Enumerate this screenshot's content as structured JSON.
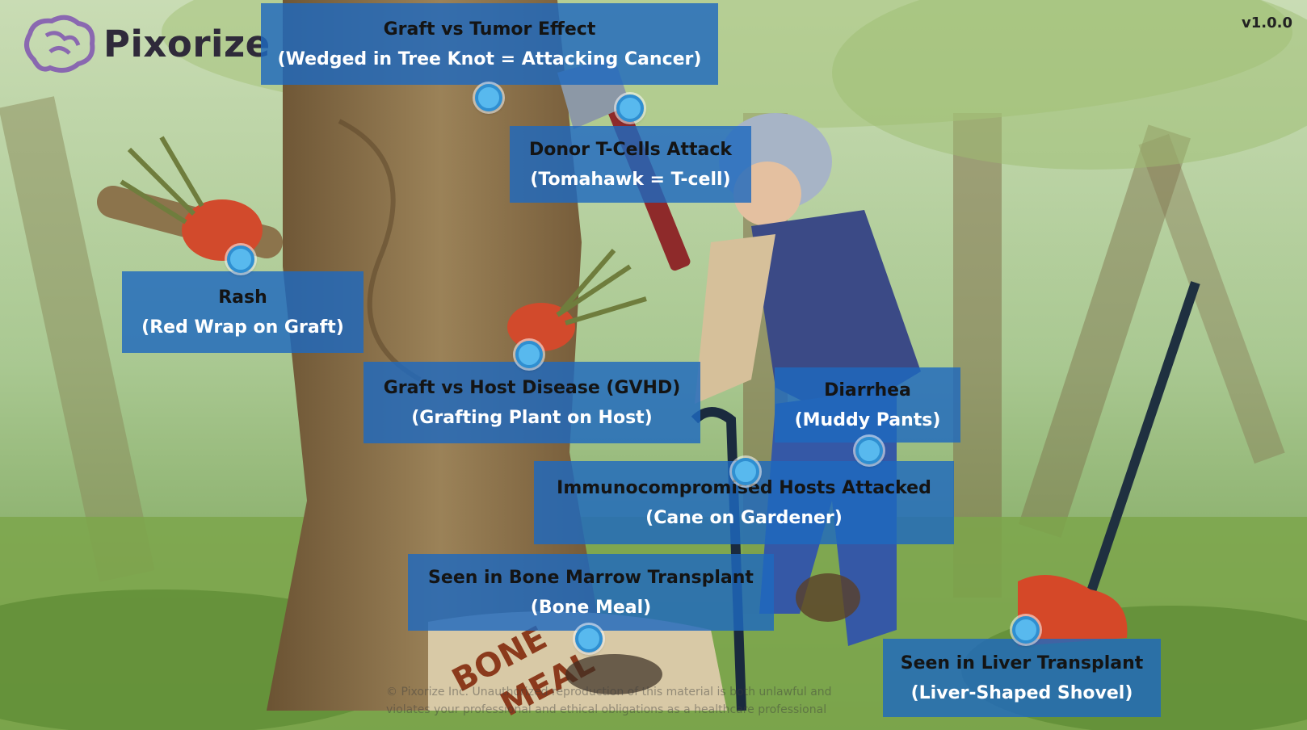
{
  "app": {
    "logo_text": "Pixorize",
    "version": "v1.0.0"
  },
  "labels": [
    {
      "id": "graft-vs-tumor",
      "title": "Graft vs Tumor Effect",
      "subtitle": "(Wedged in Tree Knot = Attacking Cancer)"
    },
    {
      "id": "donor-tcells",
      "title": "Donor T-Cells Attack",
      "subtitle": "(Tomahawk = T-cell)"
    },
    {
      "id": "rash",
      "title": "Rash",
      "subtitle": "(Red Wrap on Graft)"
    },
    {
      "id": "gvhd",
      "title": "Graft vs Host Disease (GVHD)",
      "subtitle": "(Grafting Plant on Host)"
    },
    {
      "id": "diarrhea",
      "title": "Diarrhea",
      "subtitle": "(Muddy Pants)"
    },
    {
      "id": "immunocompromised",
      "title": "Immunocompromised Hosts Attacked",
      "subtitle": "(Cane on Gardener)"
    },
    {
      "id": "bone-marrow",
      "title": "Seen in Bone Marrow Transplant",
      "subtitle": "(Bone Meal)"
    },
    {
      "id": "liver",
      "title": "Seen in Liver Transplant",
      "subtitle": "(Liver-Shaped Shovel)"
    }
  ],
  "scene_text": {
    "bag_line1": "BONE",
    "bag_line2": "MEAL"
  },
  "watermark": {
    "line1": "© Pixorize Inc. Unauthorized reproduction of this material is both unlawful and",
    "line2": "violates your professional and ethical obligations as a healthcare professional"
  },
  "colors": {
    "label_bg": "#1e69be",
    "hotspot": "#58b9ee",
    "logo_purple": "#7a4bb0"
  }
}
